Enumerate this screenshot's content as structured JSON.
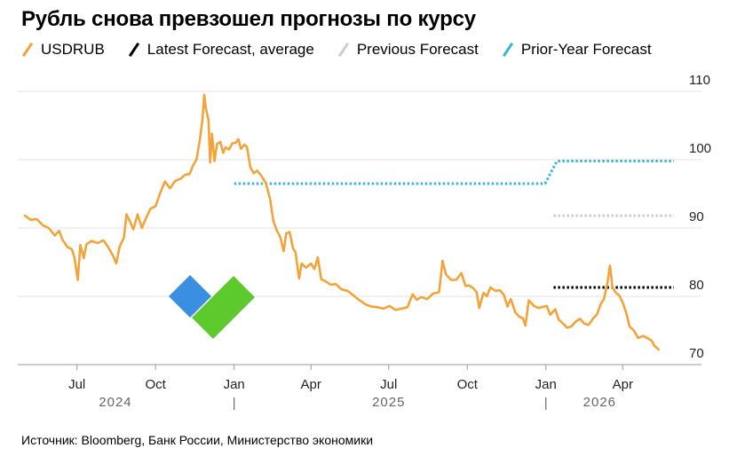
{
  "title": "Рубль снова превзошел прогнозы по курсу",
  "source": "Источник: Bloomberg, Банк России, Министерство экономики",
  "legend": [
    {
      "name": "USDRUB",
      "color": "#f2a33a",
      "icon": "slash-orange-icon"
    },
    {
      "name": "Latest Forecast, average",
      "color": "#000000",
      "icon": "slash-black-icon"
    },
    {
      "name": "Previous Forecast",
      "color": "#cccccc",
      "icon": "slash-gray-icon"
    },
    {
      "name": "Prior-Year Forecast",
      "color": "#3bb5d6",
      "icon": "slash-blue-icon"
    }
  ],
  "chart_data": {
    "type": "line",
    "title": "Рубль снова превзошел прогнозы по курсу",
    "xlim": [
      "2024-05-01",
      "2026-06-01"
    ],
    "ylim": [
      70,
      110
    ],
    "yticks": [
      70,
      80,
      90,
      100,
      110
    ],
    "y_axis_position": "right",
    "grid": "horizontal",
    "xtick_labels": [
      {
        "date": "2024-07-01",
        "label": "Jul"
      },
      {
        "date": "2024-10-01",
        "label": "Oct"
      },
      {
        "date": "2025-01-01",
        "label": "Jan"
      },
      {
        "date": "2025-04-01",
        "label": "Apr"
      },
      {
        "date": "2025-07-01",
        "label": "Jul"
      },
      {
        "date": "2025-10-01",
        "label": "Oct"
      },
      {
        "date": "2026-01-01",
        "label": "Jan"
      },
      {
        "date": "2026-04-01",
        "label": "Apr"
      }
    ],
    "year_labels": [
      {
        "date": "2024-08-15",
        "label": "2024"
      },
      {
        "date": "2025-07-01",
        "label": "2025"
      },
      {
        "date": "2026-03-05",
        "label": "2026"
      }
    ],
    "year_separators": [
      "2025-01-01",
      "2026-01-01"
    ],
    "series": [
      {
        "name": "USDRUB",
        "color": "#f2a33a",
        "style": "solid",
        "points": [
          [
            "2024-05-01",
            91.8
          ],
          [
            "2024-05-08",
            91.2
          ],
          [
            "2024-05-15",
            91.3
          ],
          [
            "2024-05-22",
            90.4
          ],
          [
            "2024-05-29",
            90.0
          ],
          [
            "2024-06-05",
            88.9
          ],
          [
            "2024-06-10",
            89.6
          ],
          [
            "2024-06-14",
            88.3
          ],
          [
            "2024-06-20",
            87.2
          ],
          [
            "2024-06-25",
            86.9
          ],
          [
            "2024-06-28",
            85.7
          ],
          [
            "2024-07-02",
            82.4
          ],
          [
            "2024-07-05",
            87.5
          ],
          [
            "2024-07-09",
            85.6
          ],
          [
            "2024-07-12",
            87.6
          ],
          [
            "2024-07-18",
            88.1
          ],
          [
            "2024-07-25",
            87.8
          ],
          [
            "2024-08-01",
            88.2
          ],
          [
            "2024-08-06",
            87.3
          ],
          [
            "2024-08-12",
            86.0
          ],
          [
            "2024-08-16",
            84.8
          ],
          [
            "2024-08-20",
            87.3
          ],
          [
            "2024-08-25",
            88.6
          ],
          [
            "2024-08-28",
            92.0
          ],
          [
            "2024-09-01",
            91.0
          ],
          [
            "2024-09-05",
            89.8
          ],
          [
            "2024-09-10",
            92.0
          ],
          [
            "2024-09-15",
            90.0
          ],
          [
            "2024-09-20",
            91.5
          ],
          [
            "2024-09-25",
            92.8
          ],
          [
            "2024-10-01",
            93.2
          ],
          [
            "2024-10-06",
            95.0
          ],
          [
            "2024-10-12",
            96.8
          ],
          [
            "2024-10-18",
            95.8
          ],
          [
            "2024-10-24",
            96.9
          ],
          [
            "2024-10-30",
            97.2
          ],
          [
            "2024-11-05",
            97.8
          ],
          [
            "2024-11-10",
            97.9
          ],
          [
            "2024-11-14",
            99.2
          ],
          [
            "2024-11-18",
            100.0
          ],
          [
            "2024-11-22",
            103.0
          ],
          [
            "2024-11-25",
            106.0
          ],
          [
            "2024-11-27",
            109.5
          ],
          [
            "2024-11-29",
            107.5
          ],
          [
            "2024-12-02",
            105.8
          ],
          [
            "2024-12-04",
            99.6
          ],
          [
            "2024-12-06",
            103.8
          ],
          [
            "2024-12-09",
            99.8
          ],
          [
            "2024-12-12",
            102.3
          ],
          [
            "2024-12-16",
            102.6
          ],
          [
            "2024-12-19",
            101.0
          ],
          [
            "2024-12-22",
            101.8
          ],
          [
            "2024-12-26",
            101.5
          ],
          [
            "2024-12-30",
            102.4
          ],
          [
            "2025-01-03",
            102.5
          ],
          [
            "2025-01-06",
            103.0
          ],
          [
            "2025-01-09",
            101.6
          ],
          [
            "2025-01-13",
            102.2
          ],
          [
            "2025-01-16",
            101.9
          ],
          [
            "2025-01-20",
            98.9
          ],
          [
            "2025-01-24",
            98.0
          ],
          [
            "2025-01-28",
            98.4
          ],
          [
            "2025-02-01",
            97.8
          ],
          [
            "2025-02-07",
            96.6
          ],
          [
            "2025-02-12",
            94.3
          ],
          [
            "2025-02-16",
            91.0
          ],
          [
            "2025-02-20",
            89.6
          ],
          [
            "2025-02-24",
            88.7
          ],
          [
            "2025-02-28",
            86.6
          ],
          [
            "2025-03-03",
            89.2
          ],
          [
            "2025-03-07",
            89.4
          ],
          [
            "2025-03-11",
            87.0
          ],
          [
            "2025-03-14",
            86.4
          ],
          [
            "2025-03-18",
            82.6
          ],
          [
            "2025-03-21",
            84.8
          ],
          [
            "2025-03-26",
            84.2
          ],
          [
            "2025-04-01",
            84.8
          ],
          [
            "2025-04-05",
            84.0
          ],
          [
            "2025-04-09",
            85.7
          ],
          [
            "2025-04-13",
            82.5
          ],
          [
            "2025-04-18",
            82.2
          ],
          [
            "2025-04-24",
            81.7
          ],
          [
            "2025-04-30",
            81.8
          ],
          [
            "2025-05-07",
            81.0
          ],
          [
            "2025-05-14",
            80.8
          ],
          [
            "2025-05-21",
            80.1
          ],
          [
            "2025-05-28",
            79.4
          ],
          [
            "2025-06-04",
            78.8
          ],
          [
            "2025-06-11",
            78.5
          ],
          [
            "2025-06-18",
            78.4
          ],
          [
            "2025-06-25",
            78.2
          ],
          [
            "2025-07-02",
            78.6
          ],
          [
            "2025-07-09",
            78.0
          ],
          [
            "2025-07-16",
            78.2
          ],
          [
            "2025-07-23",
            78.4
          ],
          [
            "2025-07-29",
            80.3
          ],
          [
            "2025-08-03",
            79.5
          ],
          [
            "2025-08-08",
            79.9
          ],
          [
            "2025-08-15",
            79.6
          ],
          [
            "2025-08-22",
            80.4
          ],
          [
            "2025-08-29",
            80.6
          ],
          [
            "2025-09-02",
            85.2
          ],
          [
            "2025-09-06",
            83.2
          ],
          [
            "2025-09-12",
            82.4
          ],
          [
            "2025-09-18",
            82.4
          ],
          [
            "2025-09-24",
            83.4
          ],
          [
            "2025-09-29",
            81.5
          ],
          [
            "2025-10-03",
            81.6
          ],
          [
            "2025-10-08",
            81.2
          ],
          [
            "2025-10-12",
            80.6
          ],
          [
            "2025-10-15",
            78.3
          ],
          [
            "2025-10-20",
            80.5
          ],
          [
            "2025-10-24",
            80.0
          ],
          [
            "2025-10-28",
            81.3
          ],
          [
            "2025-11-03",
            80.8
          ],
          [
            "2025-11-08",
            80.9
          ],
          [
            "2025-11-13",
            80.2
          ],
          [
            "2025-11-17",
            78.5
          ],
          [
            "2025-11-21",
            79.6
          ],
          [
            "2025-11-26",
            77.7
          ],
          [
            "2025-12-01",
            77.0
          ],
          [
            "2025-12-05",
            76.8
          ],
          [
            "2025-12-08",
            75.7
          ],
          [
            "2025-12-12",
            79.4
          ],
          [
            "2025-12-18",
            78.6
          ],
          [
            "2025-12-23",
            78.3
          ],
          [
            "2025-12-27",
            78.4
          ],
          [
            "2026-01-02",
            78.6
          ],
          [
            "2026-01-06",
            77.3
          ],
          [
            "2026-01-12",
            78.1
          ],
          [
            "2026-01-16",
            76.6
          ],
          [
            "2026-01-22",
            75.9
          ],
          [
            "2026-01-26",
            75.4
          ],
          [
            "2026-01-31",
            75.6
          ],
          [
            "2026-02-05",
            76.3
          ],
          [
            "2026-02-10",
            76.7
          ],
          [
            "2026-02-15",
            76.0
          ],
          [
            "2026-02-20",
            75.8
          ],
          [
            "2026-02-25",
            76.7
          ],
          [
            "2026-03-02",
            77.4
          ],
          [
            "2026-03-06",
            78.8
          ],
          [
            "2026-03-10",
            79.6
          ],
          [
            "2026-03-14",
            81.9
          ],
          [
            "2026-03-17",
            84.5
          ],
          [
            "2026-03-20",
            81.3
          ],
          [
            "2026-03-24",
            80.5
          ],
          [
            "2026-03-28",
            80.1
          ],
          [
            "2026-04-01",
            79.1
          ],
          [
            "2026-04-05",
            77.6
          ],
          [
            "2026-04-09",
            75.6
          ],
          [
            "2026-04-14",
            75.0
          ],
          [
            "2026-04-19",
            73.9
          ],
          [
            "2026-04-25",
            74.2
          ],
          [
            "2026-05-01",
            73.8
          ],
          [
            "2026-05-05",
            73.5
          ],
          [
            "2026-05-08",
            72.8
          ],
          [
            "2026-05-13",
            72.2
          ]
        ]
      },
      {
        "name": "Prior-Year Forecast",
        "color": "#3bb5d6",
        "style": "dotted",
        "points": [
          [
            "2025-01-01",
            96.5
          ],
          [
            "2025-12-31",
            96.5
          ],
          [
            "2026-01-14",
            99.8
          ],
          [
            "2026-05-31",
            99.8
          ]
        ]
      },
      {
        "name": "Previous Forecast",
        "color": "#cccccc",
        "style": "dotted",
        "points": [
          [
            "2026-01-10",
            91.8
          ],
          [
            "2026-05-31",
            91.8
          ]
        ]
      },
      {
        "name": "Latest Forecast, average",
        "color": "#000000",
        "style": "dotted",
        "points": [
          [
            "2026-01-10",
            81.3
          ],
          [
            "2026-05-31",
            81.3
          ]
        ]
      }
    ]
  }
}
